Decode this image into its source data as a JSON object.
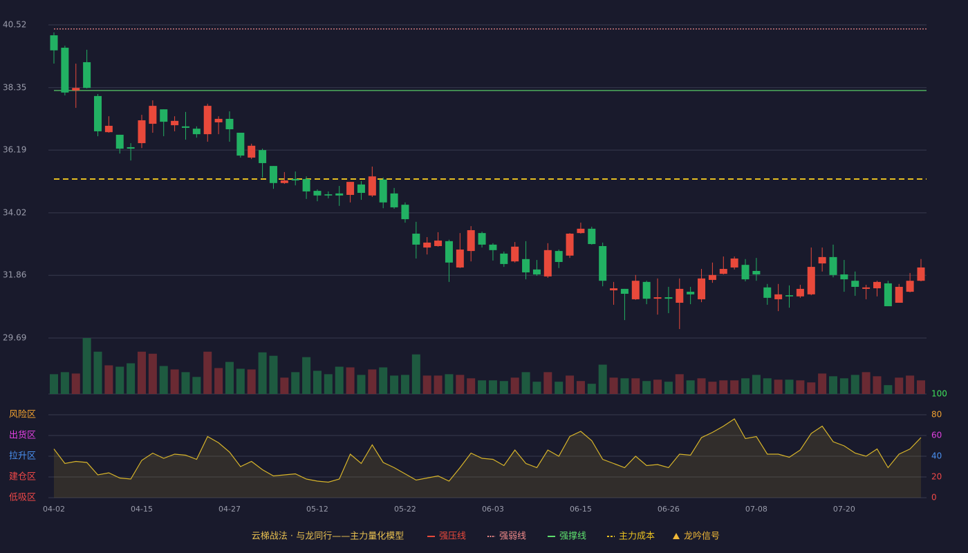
{
  "chart_data": [
    {
      "type": "candlestick",
      "categories": [
        "04-02",
        null,
        null,
        null,
        null,
        null,
        null,
        null,
        "04-15",
        null,
        null,
        null,
        null,
        null,
        null,
        null,
        "04-27",
        null,
        null,
        null,
        null,
        null,
        null,
        null,
        "05-12",
        null,
        null,
        null,
        null,
        null,
        null,
        null,
        "05-22",
        null,
        null,
        null,
        null,
        null,
        null,
        null,
        "06-03",
        null,
        null,
        null,
        null,
        null,
        null,
        null,
        "06-15",
        null,
        null,
        null,
        null,
        null,
        null,
        null,
        "06-26",
        null,
        null,
        null,
        null,
        null,
        null,
        null,
        "07-08",
        null,
        null,
        null,
        null,
        null,
        null,
        null,
        "07-20",
        null,
        null,
        null,
        null,
        null,
        null,
        null
      ],
      "open": [
        40.16,
        39.73,
        38.25,
        39.23,
        38.06,
        36.81,
        36.72,
        36.29,
        36.43,
        37.1,
        37.6,
        37.05,
        37.01,
        36.93,
        36.74,
        37.15,
        37.27,
        36.79,
        35.93,
        36.19,
        35.64,
        35.05,
        35.19,
        35.19,
        34.78,
        34.66,
        34.69,
        34.64,
        35.0,
        34.62,
        35.17,
        34.69,
        34.3,
        33.3,
        32.82,
        32.87,
        33.04,
        32.13,
        32.7,
        33.32,
        32.92,
        32.61,
        32.34,
        32.42,
        32.06,
        31.82,
        32.7,
        32.54,
        33.32,
        33.47,
        32.87,
        31.34,
        31.39,
        31.03,
        31.63,
        31.05,
        31.1,
        30.91,
        31.29,
        31.03,
        31.7,
        31.91,
        32.13,
        32.22,
        32.01,
        31.44,
        31.03,
        31.17,
        31.13,
        31.2,
        32.27,
        32.49,
        31.89,
        31.67,
        31.39,
        31.41,
        31.58,
        30.91,
        31.29,
        31.67
      ],
      "close": [
        39.64,
        38.18,
        38.34,
        38.34,
        36.84,
        37.03,
        36.24,
        36.24,
        37.22,
        37.72,
        37.17,
        37.2,
        36.96,
        36.74,
        37.72,
        37.27,
        36.91,
        36.0,
        36.34,
        35.74,
        35.05,
        35.14,
        35.14,
        34.76,
        34.62,
        34.62,
        34.62,
        35.09,
        34.71,
        35.28,
        34.38,
        34.21,
        33.8,
        32.92,
        32.99,
        33.06,
        32.3,
        32.75,
        33.42,
        32.92,
        32.73,
        32.25,
        32.85,
        31.96,
        31.89,
        32.73,
        32.32,
        33.3,
        33.47,
        32.94,
        31.67,
        31.41,
        31.22,
        31.67,
        31.05,
        31.1,
        31.05,
        31.39,
        31.2,
        31.75,
        31.87,
        32.08,
        32.44,
        31.72,
        31.89,
        31.08,
        31.2,
        31.13,
        31.39,
        32.15,
        32.49,
        31.87,
        31.72,
        31.46,
        31.44,
        31.63,
        30.79,
        31.46,
        31.67,
        32.13
      ],
      "low": [
        39.18,
        38.08,
        37.65,
        38.32,
        36.67,
        36.79,
        36.07,
        35.83,
        36.26,
        36.79,
        36.67,
        36.84,
        36.55,
        36.62,
        36.48,
        36.74,
        36.48,
        35.93,
        35.88,
        35.24,
        34.85,
        35.02,
        34.97,
        34.5,
        34.42,
        34.52,
        34.26,
        34.38,
        34.47,
        34.57,
        34.18,
        34.16,
        33.68,
        32.44,
        32.58,
        32.85,
        31.63,
        32.11,
        32.34,
        32.82,
        32.37,
        32.15,
        32.3,
        31.72,
        31.84,
        31.77,
        32.11,
        32.46,
        33.3,
        32.92,
        31.48,
        30.84,
        30.31,
        31.01,
        30.86,
        30.5,
        30.55,
        30.0,
        30.86,
        30.93,
        31.6,
        31.89,
        32.06,
        31.65,
        31.67,
        30.84,
        30.62,
        30.74,
        31.08,
        31.17,
        31.99,
        31.79,
        31.29,
        31.15,
        31.03,
        31.13,
        30.79,
        30.91,
        31.27,
        31.65
      ],
      "high": [
        40.26,
        39.8,
        39.18,
        39.66,
        38.13,
        37.36,
        36.72,
        36.43,
        37.41,
        37.91,
        37.6,
        37.36,
        37.51,
        37.01,
        37.79,
        37.36,
        37.53,
        36.79,
        36.41,
        36.24,
        35.64,
        35.43,
        35.45,
        35.28,
        34.83,
        34.76,
        34.95,
        35.09,
        35.12,
        35.62,
        35.24,
        34.88,
        34.38,
        33.71,
        33.18,
        33.35,
        33.09,
        33.32,
        33.56,
        33.37,
        32.97,
        32.68,
        33.01,
        33.04,
        32.39,
        32.97,
        32.75,
        33.32,
        33.68,
        33.54,
        32.99,
        31.63,
        31.39,
        31.87,
        31.67,
        31.75,
        31.46,
        31.75,
        31.46,
        32.08,
        32.3,
        32.51,
        32.51,
        32.42,
        32.46,
        31.56,
        31.56,
        31.51,
        31.53,
        32.82,
        32.82,
        32.92,
        32.39,
        31.99,
        31.53,
        31.67,
        31.67,
        31.56,
        31.94,
        32.42
      ],
      "up_color": "#e8493b",
      "down_color": "#22b163",
      "ylim": [
        29.69,
        40.52
      ],
      "yticks": [
        40.52,
        38.35,
        36.19,
        34.02,
        31.86,
        29.69
      ],
      "grid": true,
      "legend_title": "云梯战法 · 与龙同行——主力量化模型",
      "overlays": [
        {
          "name": "强压线",
          "color": "#e8493b",
          "style": "solid",
          "value": null
        },
        {
          "name": "强弱线",
          "color": "#f08a8a",
          "style": "dotted",
          "value": 40.38
        },
        {
          "name": "强撑线",
          "color": "#5ee06e",
          "style": "solid",
          "value": 38.25
        },
        {
          "name": "主力成本",
          "color": "#e8c020",
          "style": "dashed",
          "value": 35.19
        },
        {
          "name": "龙吟信号",
          "color": "#f0b838",
          "style": "triangle",
          "value": null
        }
      ]
    },
    {
      "type": "bar",
      "values": [
        29,
        32,
        30,
        82,
        62,
        42,
        40,
        45,
        62,
        59,
        41,
        36,
        32,
        25,
        62,
        38,
        47,
        37,
        36,
        61,
        56,
        24,
        32,
        54,
        34,
        29,
        40,
        39,
        28,
        36,
        39,
        27,
        28,
        58,
        27,
        27,
        29,
        28,
        23,
        20,
        20,
        19,
        24,
        32,
        18,
        32,
        18,
        27,
        19,
        15,
        43,
        24,
        23,
        23,
        19,
        21,
        18,
        29,
        20,
        23,
        18,
        20,
        20,
        23,
        28,
        23,
        21,
        21,
        20,
        17,
        30,
        26,
        23,
        28,
        32,
        26,
        13,
        24,
        27,
        20
      ],
      "up_color": "#6a2a33",
      "down_color": "#1e5a40",
      "ylim": [
        0,
        82
      ]
    },
    {
      "type": "line",
      "values": [
        47,
        33,
        35,
        34,
        22,
        24,
        19,
        18,
        36,
        43,
        38,
        42,
        41,
        37,
        59,
        53,
        44,
        30,
        35,
        27,
        21,
        22,
        23,
        18,
        16,
        15,
        18,
        42,
        33,
        51,
        34,
        29,
        23,
        17,
        19,
        21,
        16,
        29,
        43,
        38,
        37,
        31,
        46,
        33,
        29,
        46,
        40,
        59,
        64,
        55,
        37,
        33,
        29,
        40,
        31,
        32,
        29,
        42,
        41,
        58,
        63,
        69,
        76,
        57,
        59,
        42,
        42,
        39,
        46,
        62,
        69,
        54,
        50,
        43,
        40,
        47,
        29,
        42,
        47,
        58
      ],
      "color": "#d8b52a",
      "ylim": [
        0,
        100
      ],
      "yticks": [
        100,
        80,
        60,
        40,
        20,
        0
      ],
      "ytick_colors": [
        "#3ee05a",
        "#f0a030",
        "#e040e0",
        "#4a90f0",
        "#f04848",
        "#f04848"
      ],
      "zones": [
        {
          "label": "风险区",
          "value": 80,
          "color": "#f0a030"
        },
        {
          "label": "出货区",
          "value": 60,
          "color": "#e040e0"
        },
        {
          "label": "拉升区",
          "value": 40,
          "color": "#4a90f0"
        },
        {
          "label": "建仓区",
          "value": 20,
          "color": "#f04848"
        },
        {
          "label": "低吸区",
          "value": 0,
          "color": "#f04848"
        }
      ]
    }
  ]
}
